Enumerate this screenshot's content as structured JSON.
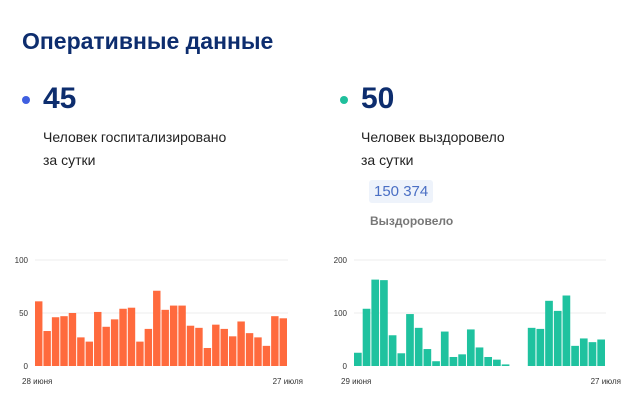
{
  "header": {
    "title": "Оперативные данные"
  },
  "stats": [
    {
      "value": "45",
      "label_line1": "Человек госпитализировано",
      "label_line2": "за сутки",
      "color": "#3f5fe0"
    },
    {
      "value": "50",
      "label_line1": "Человек выздоровело",
      "label_line2": "за сутки",
      "color": "#1fbf9c",
      "total": "150 374",
      "total_label": "Выздоровело"
    }
  ],
  "chart_data": [
    {
      "type": "bar",
      "color": "#ff6a3d",
      "ylim": [
        0,
        100
      ],
      "yticks": [
        "0",
        "50",
        "100"
      ],
      "x_start_label": "28 июня",
      "x_end_label": "27 июля",
      "grid": true,
      "values": [
        61,
        33,
        46,
        47,
        50,
        27,
        23,
        51,
        37,
        44,
        54,
        55,
        23,
        35,
        71,
        53,
        57,
        57,
        38,
        36,
        17,
        39,
        35,
        28,
        42,
        31,
        27,
        19,
        47,
        45
      ]
    },
    {
      "type": "bar",
      "color": "#1fc29f",
      "ylim": [
        0,
        200
      ],
      "yticks": [
        "0",
        "100",
        "200"
      ],
      "x_start_label": "29 июня",
      "x_end_label": "27 июля",
      "grid": true,
      "values": [
        25,
        108,
        163,
        162,
        58,
        24,
        98,
        72,
        32,
        9,
        65,
        17,
        22,
        69,
        35,
        17,
        12,
        3,
        null,
        null,
        72,
        70,
        123,
        104,
        133,
        38,
        52,
        45,
        50
      ]
    }
  ]
}
